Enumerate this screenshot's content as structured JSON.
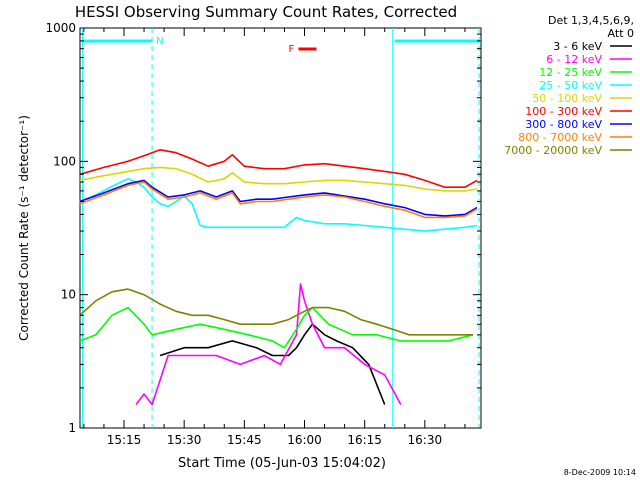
{
  "chart_data": {
    "type": "line",
    "title": "HESSI Observing Summary Count Rates, Corrected",
    "xlabel": "Start Time (05-Jun-03 15:04:02)",
    "ylabel": "Corrected Count Rate (s⁻¹ detector⁻¹)",
    "x_ticks": [
      "15:15",
      "15:30",
      "15:45",
      "16:00",
      "16:15",
      "16:30"
    ],
    "y_ticks": [
      "1",
      "10",
      "100",
      "1000"
    ],
    "yscale": "log",
    "ylim": [
      1,
      1000
    ],
    "xlim": [
      "15:04:02",
      "16:44:00"
    ],
    "legend_header": [
      "Det 1,3,4,5,6,9,",
      "Att 0"
    ],
    "legend_position": "right",
    "footer": "8-Dec-2009 10:14",
    "annotations": {
      "N": {
        "label": "N",
        "color": "#00ffff",
        "intervals": [
          [
            "15:04",
            "15:22"
          ],
          [
            "16:22",
            "16:44"
          ]
        ]
      },
      "F": {
        "label": "F",
        "color": "#ff0000",
        "interval": [
          "15:56",
          "16:03"
        ]
      },
      "boundaries": [
        "15:22",
        "16:22",
        "16:44"
      ]
    },
    "series": [
      {
        "name": "3 - 6 keV",
        "color": "#000000",
        "x": [
          "15:24",
          "15:30",
          "15:36",
          "15:42",
          "15:48",
          "15:52",
          "15:56",
          "15:58",
          "16:00",
          "16:02",
          "16:05",
          "16:08",
          "16:12",
          "16:16",
          "16:20"
        ],
        "y": [
          3.5,
          4.0,
          4.0,
          4.5,
          4.0,
          3.5,
          3.5,
          4.0,
          5.0,
          6.0,
          5.0,
          4.5,
          4.0,
          3.0,
          1.5
        ]
      },
      {
        "name": "6 - 12 keV",
        "color": "#ff00ff",
        "x": [
          "15:18",
          "15:20",
          "15:22",
          "15:26",
          "15:32",
          "15:38",
          "15:44",
          "15:50",
          "15:54",
          "15:58",
          "15:59",
          "16:00",
          "16:02",
          "16:05",
          "16:10",
          "16:15",
          "16:20",
          "16:24"
        ],
        "y": [
          1.5,
          1.8,
          1.5,
          3.5,
          3.5,
          3.5,
          3.0,
          3.5,
          3.0,
          5.0,
          12.0,
          9.0,
          6.0,
          4.0,
          4.0,
          3.0,
          2.5,
          1.5
        ]
      },
      {
        "name": "12 - 25 keV",
        "color": "#00ff00",
        "x": [
          "15:04",
          "15:08",
          "15:12",
          "15:16",
          "15:20",
          "15:22",
          "15:28",
          "15:34",
          "15:40",
          "15:46",
          "15:52",
          "15:55",
          "15:58",
          "16:00",
          "16:02",
          "16:06",
          "16:12",
          "16:18",
          "16:24",
          "16:30",
          "16:36",
          "16:42"
        ],
        "y": [
          4.5,
          5.0,
          7.0,
          8.0,
          6.0,
          5.0,
          5.5,
          6.0,
          5.5,
          5.0,
          4.5,
          4.0,
          5.5,
          7.0,
          8.0,
          6.0,
          5.0,
          5.0,
          4.5,
          4.5,
          4.5,
          5.0
        ]
      },
      {
        "name": "25 - 50 keV",
        "color": "#00ffff",
        "x": [
          "15:04",
          "15:08",
          "15:12",
          "15:16",
          "15:18",
          "15:20",
          "15:22",
          "15:24",
          "15:26",
          "15:28",
          "15:30",
          "15:32",
          "15:34",
          "15:36",
          "15:40",
          "15:45",
          "15:50",
          "15:55",
          "15:58",
          "16:00",
          "16:05",
          "16:10",
          "16:15",
          "16:20",
          "16:25",
          "16:30",
          "16:35",
          "16:40",
          "16:43"
        ],
        "y": [
          50,
          56,
          65,
          74,
          70,
          64,
          54,
          48,
          46,
          50,
          55,
          48,
          33,
          32,
          32,
          32,
          32,
          32,
          38,
          36,
          34,
          34,
          33,
          32,
          31,
          30,
          31,
          32,
          33
        ]
      },
      {
        "name": "50 - 100 keV",
        "color": "#d8d800",
        "x": [
          "15:04",
          "15:10",
          "15:16",
          "15:20",
          "15:24",
          "15:28",
          "15:32",
          "15:36",
          "15:40",
          "15:42",
          "15:45",
          "15:50",
          "15:55",
          "16:00",
          "16:05",
          "16:10",
          "16:15",
          "16:20",
          "16:25",
          "16:30",
          "16:35",
          "16:40",
          "16:43"
        ],
        "y": [
          72,
          78,
          84,
          88,
          90,
          88,
          80,
          70,
          74,
          82,
          70,
          68,
          68,
          70,
          72,
          72,
          70,
          68,
          66,
          62,
          60,
          60,
          62
        ]
      },
      {
        "name": "100 - 300 keV",
        "color": "#ff0000",
        "x": [
          "15:04",
          "15:10",
          "15:16",
          "15:20",
          "15:24",
          "15:28",
          "15:32",
          "15:36",
          "15:40",
          "15:42",
          "15:45",
          "15:50",
          "15:55",
          "16:00",
          "16:05",
          "16:10",
          "16:15",
          "16:20",
          "16:25",
          "16:30",
          "16:35",
          "16:40",
          "16:43"
        ],
        "y": [
          80,
          90,
          100,
          110,
          122,
          116,
          104,
          92,
          100,
          112,
          92,
          88,
          88,
          94,
          96,
          92,
          88,
          84,
          80,
          72,
          64,
          64,
          72
        ]
      },
      {
        "name": "300 - 800 keV",
        "color": "#0000ff",
        "x": [
          "15:04",
          "15:10",
          "15:16",
          "15:20",
          "15:22",
          "15:26",
          "15:30",
          "15:34",
          "15:38",
          "15:42",
          "15:44",
          "15:48",
          "15:52",
          "15:56",
          "16:00",
          "16:05",
          "16:10",
          "16:15",
          "16:20",
          "16:25",
          "16:30",
          "16:35",
          "16:40",
          "16:43"
        ],
        "y": [
          50,
          58,
          68,
          72,
          64,
          54,
          56,
          60,
          54,
          60,
          50,
          52,
          52,
          54,
          56,
          58,
          55,
          52,
          48,
          45,
          40,
          39,
          40,
          45
        ]
      },
      {
        "name": "800 - 7000 keV",
        "color": "#ff8000",
        "x": [
          "15:04",
          "15:10",
          "15:16",
          "15:20",
          "15:22",
          "15:26",
          "15:30",
          "15:34",
          "15:38",
          "15:42",
          "15:44",
          "15:48",
          "15:52",
          "15:56",
          "16:00",
          "16:05",
          "16:10",
          "16:15",
          "16:20",
          "16:25",
          "16:30",
          "16:35",
          "16:40",
          "16:43"
        ],
        "y": [
          48,
          56,
          66,
          70,
          62,
          52,
          54,
          58,
          52,
          58,
          48,
          50,
          50,
          52,
          54,
          56,
          54,
          50,
          46,
          43,
          38,
          38,
          39,
          44
        ]
      },
      {
        "name": "7000 - 20000 keV",
        "color": "#808000",
        "x": [
          "15:04",
          "15:08",
          "15:12",
          "15:16",
          "15:20",
          "15:24",
          "15:28",
          "15:32",
          "15:36",
          "15:40",
          "15:44",
          "15:48",
          "15:52",
          "15:56",
          "16:00",
          "16:02",
          "16:06",
          "16:10",
          "16:14",
          "16:18",
          "16:22",
          "16:26",
          "16:30",
          "16:34",
          "16:38",
          "16:42"
        ],
        "y": [
          7.0,
          9.0,
          10.5,
          11.0,
          10.0,
          8.5,
          7.5,
          7.0,
          7.0,
          6.5,
          6.0,
          6.0,
          6.0,
          6.5,
          7.5,
          8.0,
          8.0,
          7.5,
          6.5,
          6.0,
          5.5,
          5.0,
          5.0,
          5.0,
          5.0,
          5.0
        ]
      }
    ]
  }
}
